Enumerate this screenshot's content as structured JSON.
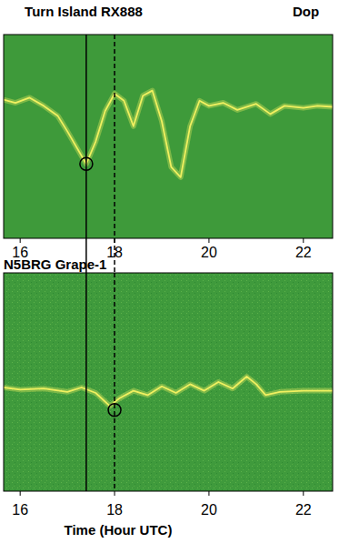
{
  "chart_data": [
    {
      "type": "line",
      "title": "Turn Island RX888",
      "subtitle": "Dop",
      "x": [
        15.65,
        15.9,
        16.2,
        16.5,
        16.8,
        17.0,
        17.4,
        17.6,
        17.8,
        18.0,
        18.2,
        18.4,
        18.6,
        18.8,
        19.0,
        19.2,
        19.4,
        19.6,
        19.8,
        20.0,
        20.3,
        20.6,
        21.0,
        21.3,
        21.6,
        22.0,
        22.3,
        22.62
      ],
      "values": [
        0.36,
        0.33,
        0.38,
        0.3,
        0.2,
        0.05,
        -0.27,
        -0.05,
        0.25,
        0.42,
        0.35,
        0.1,
        0.4,
        0.45,
        0.15,
        -0.3,
        -0.4,
        0.1,
        0.35,
        0.3,
        0.33,
        0.26,
        0.32,
        0.22,
        0.3,
        0.28,
        0.3,
        0.29
      ],
      "color": "#f0f060",
      "xlim": [
        15.65,
        22.62
      ],
      "ylim": [
        -1,
        1
      ],
      "xticks": [
        16,
        18,
        20,
        22
      ],
      "tick_labels": "x",
      "vlines": [
        {
          "x": 17.4,
          "line_style": "solid"
        },
        {
          "x": 18.0,
          "line_style": "dashed"
        }
      ],
      "points": [
        {
          "x": 17.4,
          "y": -0.27
        }
      ]
    },
    {
      "type": "line",
      "title": "N5BRG Grape-1",
      "x_label": "Time (Hour UTC)",
      "x": [
        15.65,
        16.0,
        16.5,
        17.0,
        17.3,
        17.6,
        17.9,
        18.1,
        18.4,
        18.7,
        19.0,
        19.3,
        19.6,
        19.9,
        20.2,
        20.5,
        20.8,
        21.0,
        21.2,
        21.5,
        22.0,
        22.62
      ],
      "values": [
        -0.05,
        -0.07,
        -0.06,
        -0.09,
        -0.05,
        -0.1,
        -0.22,
        -0.15,
        -0.08,
        -0.12,
        -0.04,
        -0.1,
        -0.02,
        -0.08,
        0.0,
        -0.06,
        0.05,
        -0.02,
        -0.12,
        -0.09,
        -0.08,
        -0.08
      ],
      "color": "#f0f060",
      "xlim": [
        15.65,
        22.62
      ],
      "ylim": [
        -1,
        1
      ],
      "xticks": [
        16,
        18,
        20,
        22
      ],
      "tick_labels": "x",
      "vlines": [
        {
          "x": 17.4,
          "line_style": "solid"
        },
        {
          "x": 18.0,
          "line_style": "dashed"
        }
      ],
      "points": [
        {
          "x": 18.0,
          "y": -0.256
        }
      ]
    }
  ]
}
